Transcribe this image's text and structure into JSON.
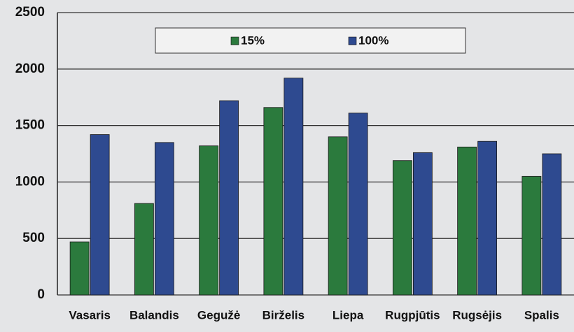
{
  "chart_data": {
    "type": "bar",
    "categories": [
      "Vasaris",
      "Balandis",
      "Gegužė",
      "Birželis",
      "Liepa",
      "Rugpjūtis",
      "Rugsėjis",
      "Spalis"
    ],
    "series": [
      {
        "name": "15%",
        "color": "#2b7a3d",
        "values": [
          470,
          810,
          1320,
          1660,
          1400,
          1190,
          1310,
          1050
        ]
      },
      {
        "name": "100%",
        "color": "#2e4a90",
        "values": [
          1420,
          1350,
          1720,
          1920,
          1610,
          1260,
          1360,
          1250
        ]
      }
    ],
    "ylim": [
      0,
      2500
    ],
    "yticks": [
      0,
      500,
      1000,
      1500,
      2000,
      2500
    ],
    "grid": true,
    "legend": "top"
  }
}
